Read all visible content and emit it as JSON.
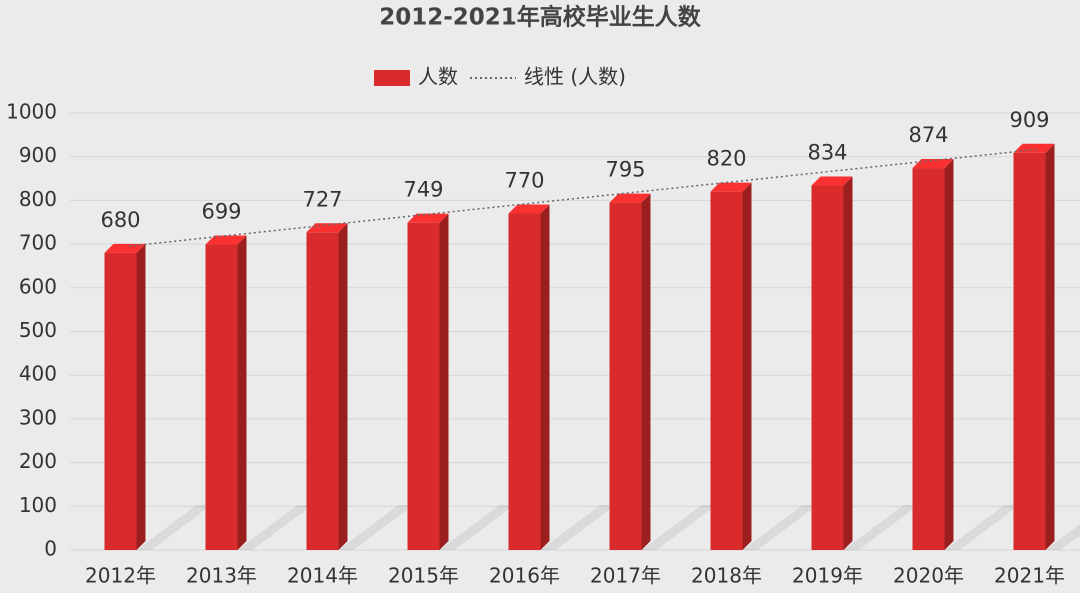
{
  "chart_data": {
    "type": "bar",
    "title": "2012-2021年高校毕业生人数",
    "categories": [
      "2012年",
      "2013年",
      "2014年",
      "2015年",
      "2016年",
      "2017年",
      "2018年",
      "2019年",
      "2020年",
      "2021年"
    ],
    "series": [
      {
        "name": "人数",
        "color": "#d92b2b",
        "values": [
          680,
          699,
          727,
          749,
          770,
          795,
          820,
          834,
          874,
          909
        ]
      }
    ],
    "trendline": {
      "name": "线性 (人数)",
      "type": "linear",
      "color": "#666666"
    },
    "ylim": [
      0,
      1000
    ],
    "yticks": [
      0,
      100,
      200,
      300,
      400,
      500,
      600,
      700,
      800,
      900,
      1000
    ],
    "grid": true
  }
}
